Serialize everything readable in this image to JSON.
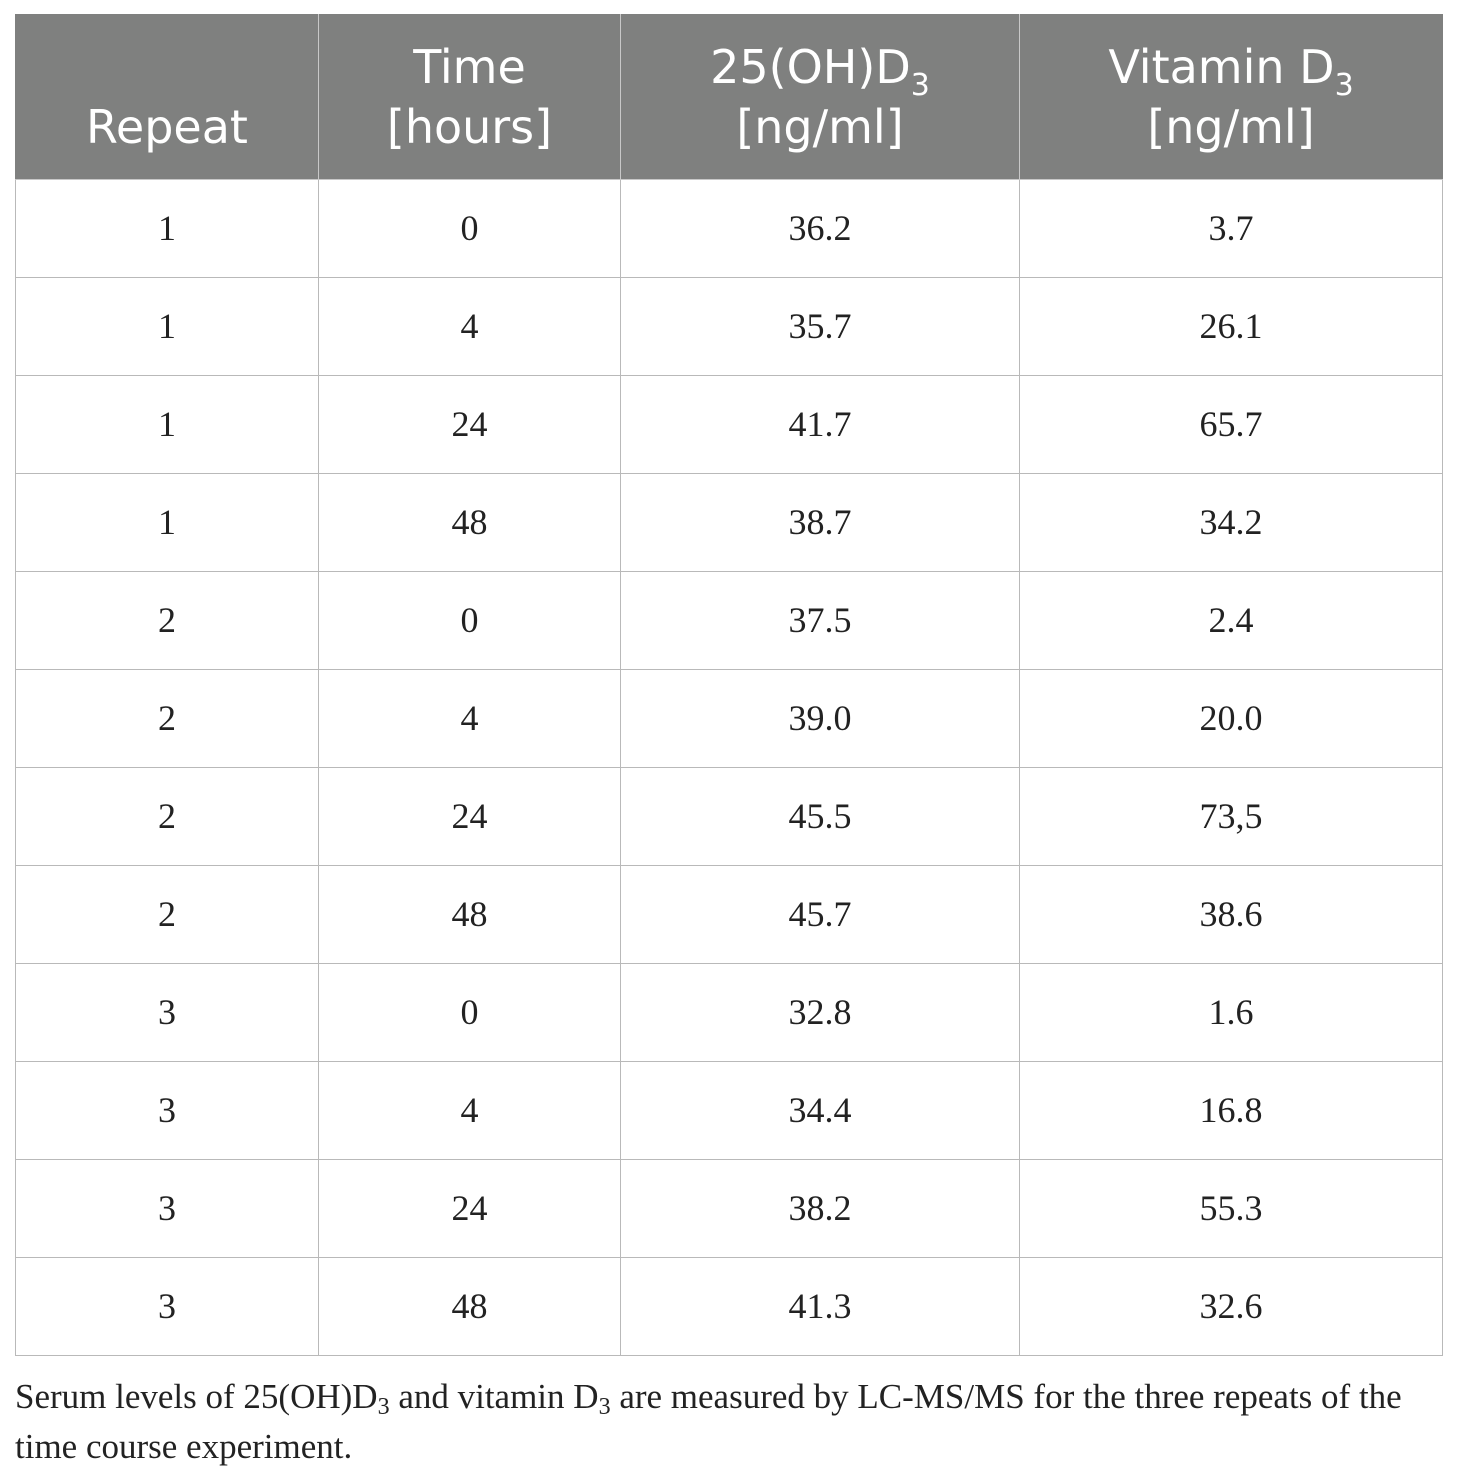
{
  "table": {
    "headers": [
      {
        "line1": "",
        "line2": "Repeat"
      },
      {
        "line1": "Time",
        "line2": "[hours]"
      },
      {
        "line1": "25(OH)D",
        "line1_sub": "3",
        "line2": "[ng/ml]"
      },
      {
        "line1": "Vitamin D",
        "line1_sub": "3",
        "line2": "[ng/ml]"
      }
    ],
    "rows": [
      [
        "1",
        "0",
        "36.2",
        "3.7"
      ],
      [
        "1",
        "4",
        "35.7",
        "26.1"
      ],
      [
        "1",
        "24",
        "41.7",
        "65.7"
      ],
      [
        "1",
        "48",
        "38.7",
        "34.2"
      ],
      [
        "2",
        "0",
        "37.5",
        "2.4"
      ],
      [
        "2",
        "4",
        "39.0",
        "20.0"
      ],
      [
        "2",
        "24",
        "45.5",
        "73,5"
      ],
      [
        "2",
        "48",
        "45.7",
        "38.6"
      ],
      [
        "3",
        "0",
        "32.8",
        "1.6"
      ],
      [
        "3",
        "4",
        "34.4",
        "16.8"
      ],
      [
        "3",
        "24",
        "38.2",
        "55.3"
      ],
      [
        "3",
        "48",
        "41.3",
        "32.6"
      ]
    ]
  },
  "caption": {
    "part1": "Serum levels of 25(OH)D",
    "sub1": "3",
    "part2": " and vitamin D",
    "sub2": "3",
    "part3": " are measured by LC-MS/MS for the three repeats of the time course experiment."
  },
  "colors": {
    "header_bg": "#7f807f",
    "header_text": "#ffffff",
    "grid": "#b9b9b9"
  }
}
